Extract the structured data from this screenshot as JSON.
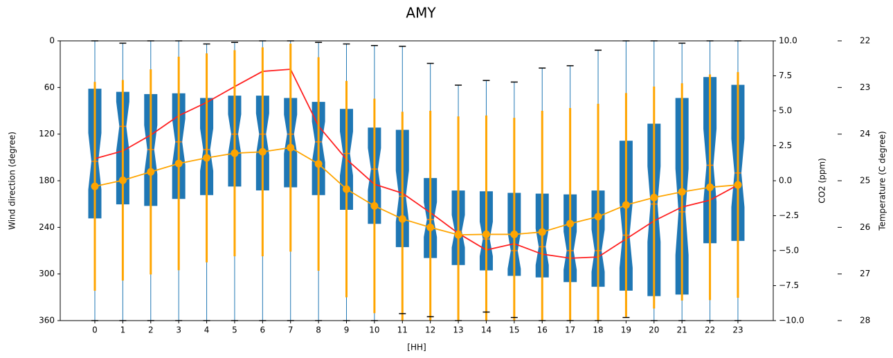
{
  "chart_data": {
    "type": "boxplot",
    "title": "AMY",
    "x_label": "[HH]",
    "y_label": "Wind direction (degree)",
    "y2_label": "CO2 (ppm)",
    "y3_label": "Temperature (C degree)",
    "categories": [
      "0",
      "1",
      "2",
      "3",
      "4",
      "5",
      "6",
      "7",
      "8",
      "9",
      "10",
      "11",
      "12",
      "13",
      "14",
      "15",
      "16",
      "17",
      "18",
      "19",
      "20",
      "21",
      "22",
      "23"
    ],
    "ylim": [
      360,
      0
    ],
    "yticks": [
      0,
      60,
      120,
      180,
      240,
      300,
      360
    ],
    "y2lim": [
      -10,
      10
    ],
    "y2ticks": [
      {
        "value": 10,
        "label": "10.0"
      },
      {
        "value": 7.5,
        "label": "7.5"
      },
      {
        "value": 5,
        "label": "5.0"
      },
      {
        "value": 2.5,
        "label": "2.5"
      },
      {
        "value": 0,
        "label": "0.0"
      },
      {
        "value": -2.5,
        "label": "−2.5"
      },
      {
        "value": -5,
        "label": "−5.0"
      },
      {
        "value": -7.5,
        "label": "−7.5"
      },
      {
        "value": -10,
        "label": "−10.0"
      }
    ],
    "y3lim": [
      28,
      22
    ],
    "y3ticks": [
      22,
      23,
      24,
      25,
      26,
      27,
      28
    ],
    "y_label_color": "#0000ff",
    "y2_label_color": "#ff0000",
    "y3_label_color": "#ffa500",
    "boxes": {
      "color": "#1f77b4",
      "median_color": "#ff7f0e",
      "whislo": [
        0,
        3,
        0,
        0,
        4,
        2,
        0,
        0,
        2,
        4,
        6,
        7,
        29,
        57,
        51,
        53,
        35,
        32,
        12,
        0,
        0,
        3,
        0,
        0
      ],
      "q1": [
        62,
        66,
        69,
        68,
        74,
        71,
        71,
        74,
        79,
        88,
        112,
        115,
        177,
        193,
        194,
        196,
        197,
        198,
        193,
        129,
        107,
        74,
        47,
        57
      ],
      "med": [
        155,
        110,
        140,
        130,
        140,
        120,
        120,
        120,
        130,
        145,
        165,
        200,
        230,
        245,
        255,
        270,
        265,
        270,
        270,
        250,
        210,
        220,
        160,
        170
      ],
      "q3": [
        228,
        210,
        212,
        203,
        198,
        187,
        192,
        188,
        198,
        217,
        235,
        265,
        279,
        288,
        295,
        302,
        304,
        310,
        316,
        321,
        328,
        326,
        260,
        257
      ],
      "whishi": [
        360,
        360,
        360,
        360,
        360,
        360,
        360,
        360,
        360,
        360,
        360,
        351,
        355,
        360,
        349,
        356,
        360,
        360,
        360,
        356,
        360,
        360,
        360,
        360
      ]
    },
    "series": [
      {
        "axis": "y2",
        "color": "#ff2020",
        "values": [
          1.58,
          2.13,
          3.27,
          4.65,
          5.6,
          6.73,
          7.82,
          7.97,
          3.91,
          1.53,
          -0.25,
          -0.89,
          -2.28,
          -3.76,
          -4.95,
          -4.5,
          -5.25,
          -5.54,
          -5.45,
          -4.16,
          -2.87,
          -1.88,
          -1.39,
          -0.3
        ]
      },
      {
        "axis": "y3",
        "color": "#ffa500",
        "values": [
          25.12,
          24.99,
          24.81,
          24.63,
          24.51,
          24.41,
          24.38,
          24.29,
          24.64,
          25.18,
          25.54,
          25.82,
          26.0,
          26.16,
          26.15,
          26.15,
          26.1,
          25.92,
          25.77,
          25.52,
          25.36,
          25.24,
          25.14,
          25.09
        ],
        "errors": [
          2.24,
          2.15,
          2.2,
          2.29,
          2.24,
          2.21,
          2.24,
          2.23,
          2.29,
          2.32,
          2.3,
          2.3,
          2.5,
          2.54,
          2.55,
          2.5,
          2.6,
          2.48,
          2.42,
          2.4,
          2.38,
          2.33,
          2.42,
          2.42
        ]
      }
    ]
  }
}
